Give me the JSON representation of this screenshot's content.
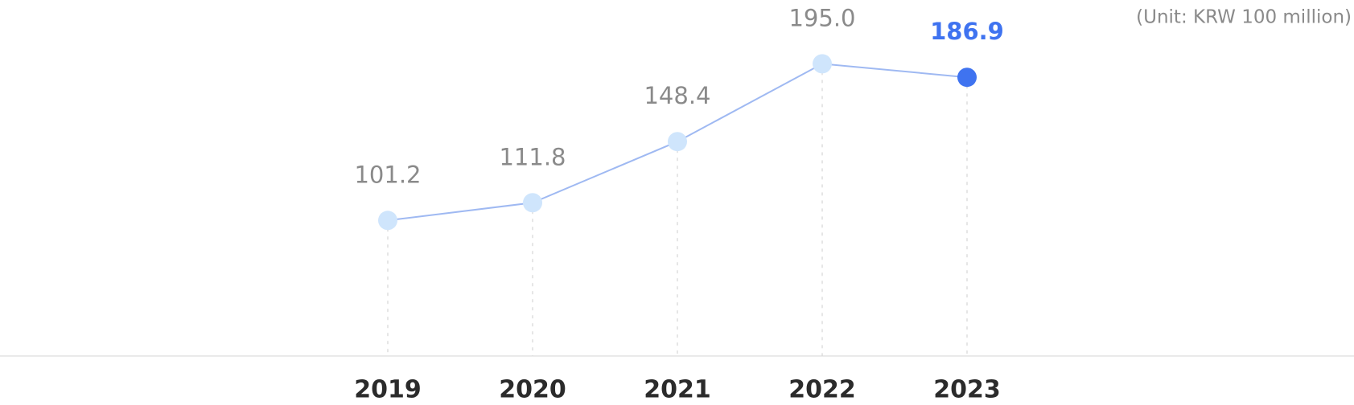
{
  "chart_data": {
    "type": "line",
    "unit": "(Unit: KRW 100 million)",
    "categories": [
      "2019",
      "2020",
      "2021",
      "2022",
      "2023"
    ],
    "values": [
      101.2,
      111.8,
      148.4,
      195.0,
      186.9
    ],
    "value_labels": [
      "101.2",
      "111.8",
      "148.4",
      "195.0",
      "186.9"
    ],
    "color": "#9fb9f2",
    "marker_colors": [
      "#cfe5fc",
      "#cfe5fc",
      "#cfe5fc",
      "#cfe5fc",
      "#3f73f0"
    ],
    "label_colors": [
      "#8a8a8a",
      "#8a8a8a",
      "#8a8a8a",
      "#8a8a8a",
      "#3f73f0"
    ],
    "ylim": [
      20,
      200
    ]
  }
}
